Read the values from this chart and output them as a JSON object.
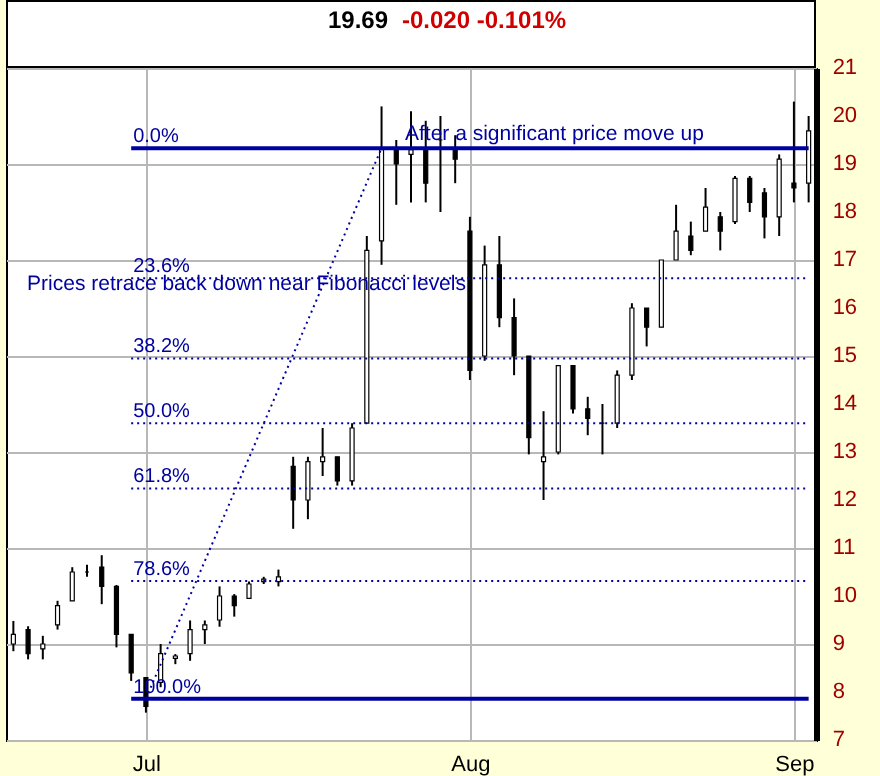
{
  "chart_data": {
    "type": "candlestick",
    "title": "19.69",
    "subtitle": "-0.020 -0.101%",
    "categories": [
      null,
      null,
      null,
      null,
      null,
      null,
      null,
      null,
      null,
      "Jul",
      null,
      null,
      null,
      null,
      null,
      null,
      null,
      null,
      null,
      null,
      null,
      null,
      null,
      null,
      null,
      null,
      null,
      null,
      null,
      null,
      null,
      "Aug",
      null,
      null,
      null,
      null,
      null,
      null,
      null,
      null,
      null,
      null,
      null,
      null,
      null,
      null,
      null,
      null,
      null,
      null,
      null,
      null,
      null,
      "Sep",
      null
    ],
    "color": "#000000",
    "ohlc": [
      [
        9.0,
        9.48,
        8.85,
        9.2
      ],
      [
        9.3,
        9.37,
        8.68,
        8.8
      ],
      [
        8.9,
        9.17,
        8.68,
        9.0
      ],
      [
        9.4,
        9.9,
        9.3,
        9.8
      ],
      [
        9.9,
        10.6,
        9.9,
        10.5
      ],
      [
        10.5,
        10.65,
        10.4,
        10.5
      ],
      [
        10.6,
        10.85,
        9.83,
        10.2
      ],
      [
        10.2,
        10.23,
        8.93,
        9.2
      ],
      [
        9.2,
        9.2,
        8.23,
        8.4
      ],
      [
        8.3,
        8.3,
        7.57,
        7.7
      ],
      [
        8.2,
        9.0,
        8.1,
        8.8
      ],
      [
        8.7,
        8.79,
        8.58,
        8.75
      ],
      [
        8.8,
        9.49,
        8.65,
        9.3
      ],
      [
        9.3,
        9.49,
        9.0,
        9.4
      ],
      [
        9.5,
        10.2,
        9.36,
        10.0
      ],
      [
        10.0,
        10.04,
        9.57,
        9.8
      ],
      [
        9.95,
        10.3,
        9.95,
        10.25
      ],
      [
        10.3,
        10.4,
        10.25,
        10.35
      ],
      [
        10.3,
        10.55,
        10.2,
        10.4
      ],
      [
        12.7,
        12.9,
        11.4,
        12.0
      ],
      [
        12.0,
        12.9,
        11.6,
        12.8
      ],
      [
        12.8,
        13.5,
        12.5,
        12.9
      ],
      [
        12.9,
        12.9,
        12.3,
        12.4
      ],
      [
        12.4,
        13.6,
        12.3,
        13.5
      ],
      [
        13.6,
        17.5,
        13.6,
        17.2
      ],
      [
        17.4,
        20.2,
        16.9,
        19.3
      ],
      [
        19.3,
        19.5,
        18.15,
        19.0
      ],
      [
        19.2,
        20.1,
        18.2,
        19.3
      ],
      [
        19.3,
        19.9,
        18.2,
        18.6
      ],
      [
        19.5,
        20.0,
        18.0,
        19.5
      ],
      [
        19.3,
        19.6,
        18.6,
        19.1
      ],
      [
        17.6,
        17.9,
        14.5,
        14.7
      ],
      [
        15.0,
        17.3,
        14.9,
        16.9
      ],
      [
        16.9,
        17.5,
        15.6,
        15.8
      ],
      [
        15.8,
        16.2,
        14.6,
        15.0
      ],
      [
        15.0,
        15.0,
        12.95,
        13.3
      ],
      [
        12.8,
        13.85,
        12.0,
        12.9
      ],
      [
        13.0,
        14.8,
        12.95,
        14.8
      ],
      [
        14.8,
        14.8,
        13.8,
        13.9
      ],
      [
        13.9,
        14.15,
        13.35,
        13.7
      ],
      [
        13.6,
        14.0,
        12.95,
        13.6
      ],
      [
        13.6,
        14.7,
        13.5,
        14.6
      ],
      [
        14.6,
        16.1,
        14.5,
        16.0
      ],
      [
        16.0,
        16.0,
        15.2,
        15.6
      ],
      [
        15.6,
        17.0,
        15.6,
        17.0
      ],
      [
        17.0,
        18.15,
        17.0,
        17.6
      ],
      [
        17.5,
        17.8,
        17.1,
        17.2
      ],
      [
        17.6,
        18.5,
        17.6,
        18.1
      ],
      [
        17.9,
        18.0,
        17.2,
        17.6
      ],
      [
        17.8,
        18.75,
        17.75,
        18.7
      ],
      [
        18.7,
        18.75,
        18.0,
        18.2
      ],
      [
        18.4,
        18.5,
        17.45,
        17.9
      ],
      [
        17.9,
        19.2,
        17.5,
        19.1
      ],
      [
        18.6,
        20.3,
        18.2,
        18.5
      ],
      [
        18.6,
        20.0,
        18.2,
        19.69
      ]
    ],
    "series": [
      {
        "type": "line",
        "color": "#0000a0",
        "line_style": "dotted",
        "values": [
          null,
          null,
          null,
          null,
          null,
          null,
          null,
          null,
          null,
          7.86,
          null,
          null,
          null,
          null,
          null,
          null,
          null,
          null,
          null,
          null,
          null,
          null,
          null,
          null,
          null,
          19.33,
          null,
          null,
          null,
          null,
          null,
          null,
          null,
          null,
          null,
          null,
          null,
          null,
          null,
          null,
          null,
          null,
          null,
          null,
          null,
          null,
          null,
          null,
          null,
          null,
          null,
          null,
          null,
          null,
          null
        ]
      }
    ],
    "ylim": [
      7,
      21
    ],
    "yticks": [
      7,
      8,
      9,
      10,
      11,
      12,
      13,
      14,
      15,
      16,
      17,
      18,
      19,
      20,
      21
    ],
    "grid": true,
    "ref_lines": [
      {
        "axis": "y",
        "value": 19.33,
        "color": "#0000a0",
        "line_style": "solid"
      },
      {
        "axis": "y",
        "value": 16.62,
        "color": "#0000a0",
        "line_style": "dotted"
      },
      {
        "axis": "y",
        "value": 14.95,
        "color": "#0000a0",
        "line_style": "dotted"
      },
      {
        "axis": "y",
        "value": 13.6,
        "color": "#0000a0",
        "line_style": "dotted"
      },
      {
        "axis": "y",
        "value": 12.24,
        "color": "#0000a0",
        "line_style": "dotted"
      },
      {
        "axis": "y",
        "value": 10.31,
        "color": "#0000a0",
        "line_style": "dotted"
      },
      {
        "axis": "y",
        "value": 7.86,
        "color": "#0000a0",
        "line_style": "solid"
      }
    ],
    "annotations": [
      "After a significant price move up",
      "Prices retrace back down near Fibonacci levels",
      {
        "text": "0.0%",
        "y": 19.33
      },
      {
        "text": "23.6%",
        "y": 16.62
      },
      {
        "text": "38.2%",
        "y": 14.95
      },
      {
        "text": "50.0%",
        "y": 13.6
      },
      {
        "text": "61.8%",
        "y": 12.24
      },
      {
        "text": "78.6%",
        "y": 10.31
      },
      {
        "text": "100.0%",
        "y": 7.86
      }
    ]
  }
}
